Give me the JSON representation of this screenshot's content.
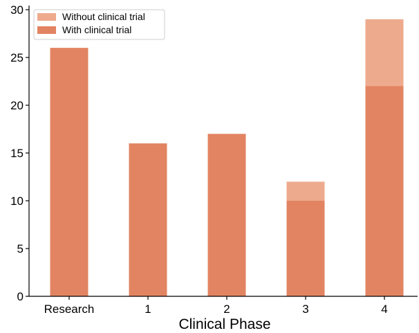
{
  "chart_data": {
    "type": "bar",
    "stacked_overlay": true,
    "categories": [
      "Research",
      "1",
      "2",
      "3",
      "4"
    ],
    "series": [
      {
        "name": "Without clinical trial",
        "values": [
          26,
          16,
          17,
          12,
          29
        ],
        "color": "#eeaa8d"
      },
      {
        "name": "With clinical trial",
        "values": [
          26,
          16,
          17,
          10,
          22
        ],
        "color": "#e28462"
      }
    ],
    "xlabel": "Clinical Phase",
    "ylabel": "",
    "ylim": [
      0,
      30
    ],
    "yticks": [
      0,
      5,
      10,
      15,
      20,
      25,
      30
    ],
    "legend": "top-left",
    "grid": false
  }
}
